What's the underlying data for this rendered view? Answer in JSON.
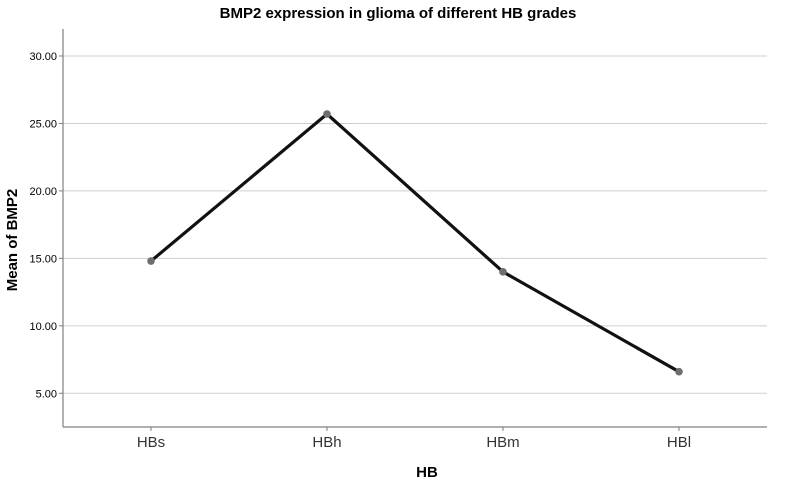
{
  "chart_data": {
    "type": "line",
    "title": "BMP2 expression in glioma of different HB grades",
    "xlabel": "HB",
    "ylabel": "Mean of BMP2",
    "categories": [
      "HBs",
      "HBh",
      "HBm",
      "HBl"
    ],
    "series": [
      {
        "values": [
          14.8,
          25.7,
          14.0,
          6.6
        ]
      }
    ],
    "ylim": [
      2.5,
      32.0
    ],
    "yticks": [
      "5.00",
      "10.00",
      "15.00",
      "20.00",
      "25.00",
      "30.00"
    ],
    "grid": true,
    "legend": "none",
    "colors": {
      "line": "#111111",
      "marker": "#6e6e6e",
      "grid": "#cfcfcf",
      "axis": "#7f7f7f"
    }
  }
}
